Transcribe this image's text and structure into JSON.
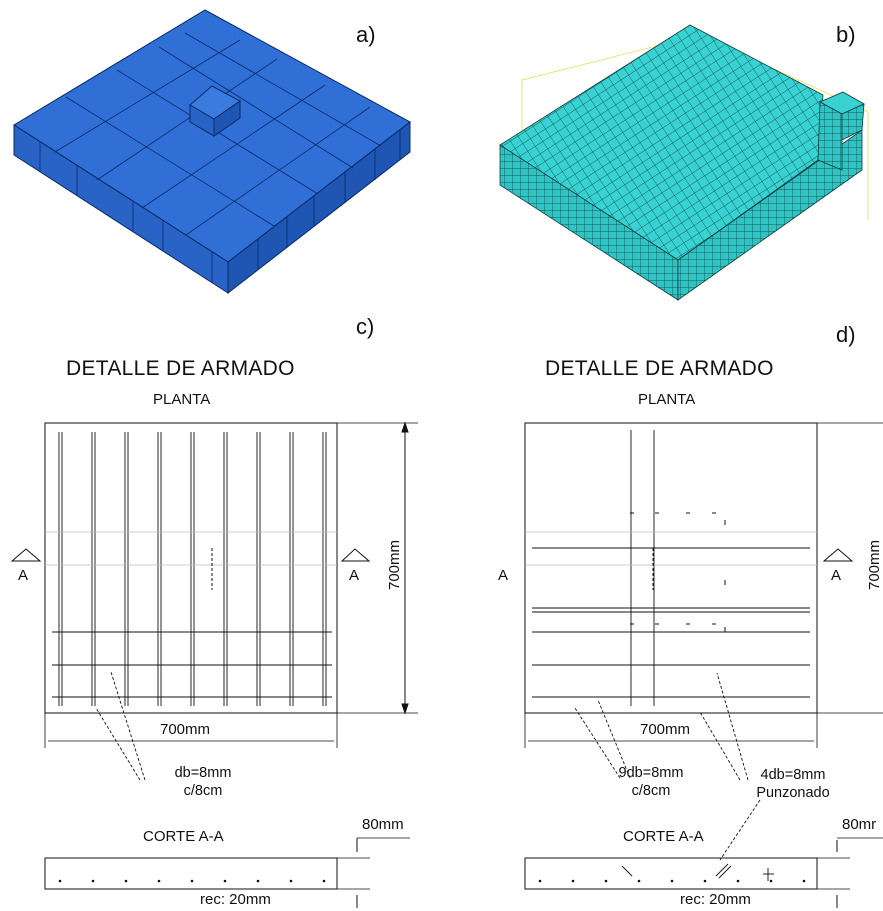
{
  "panels": {
    "a": {
      "letter": "a)"
    },
    "b": {
      "letter": "b)"
    },
    "c": {
      "letter": "c)",
      "title": "DETALLE DE ARMADO",
      "subtitle": "PLANTA",
      "section_marker_left": "A",
      "section_marker_right": "A",
      "dim_vertical": "700mm",
      "dim_horizontal": "700mm",
      "rebar_note_line1": "db=8mm",
      "rebar_note_line2": "c/8cm",
      "section_title": "CORTE A-A",
      "thickness": "80mm",
      "cover": "rec: 20mm"
    },
    "d": {
      "letter": "d)",
      "title": "DETALLE DE ARMADO",
      "subtitle": "PLANTA",
      "section_marker_left": "A",
      "section_marker_right": "A",
      "dim_vertical": "700mm",
      "dim_horizontal": "700mm",
      "rebar_note_line1": "9db=8mm",
      "rebar_note_line2": "c/8cm",
      "punch_note_line1": "4db=8mm",
      "punch_note_line2": "Punzonado",
      "section_title": "CORTE A-A",
      "thickness": "80mr",
      "cover": "rec: 20mm"
    }
  },
  "colors": {
    "slab_top": "#2f6fd6",
    "slab_side": "#1f56b3",
    "mesh_fill": "#39d2d2",
    "mesh_line": "#0d3b3b",
    "line": "#111111"
  }
}
